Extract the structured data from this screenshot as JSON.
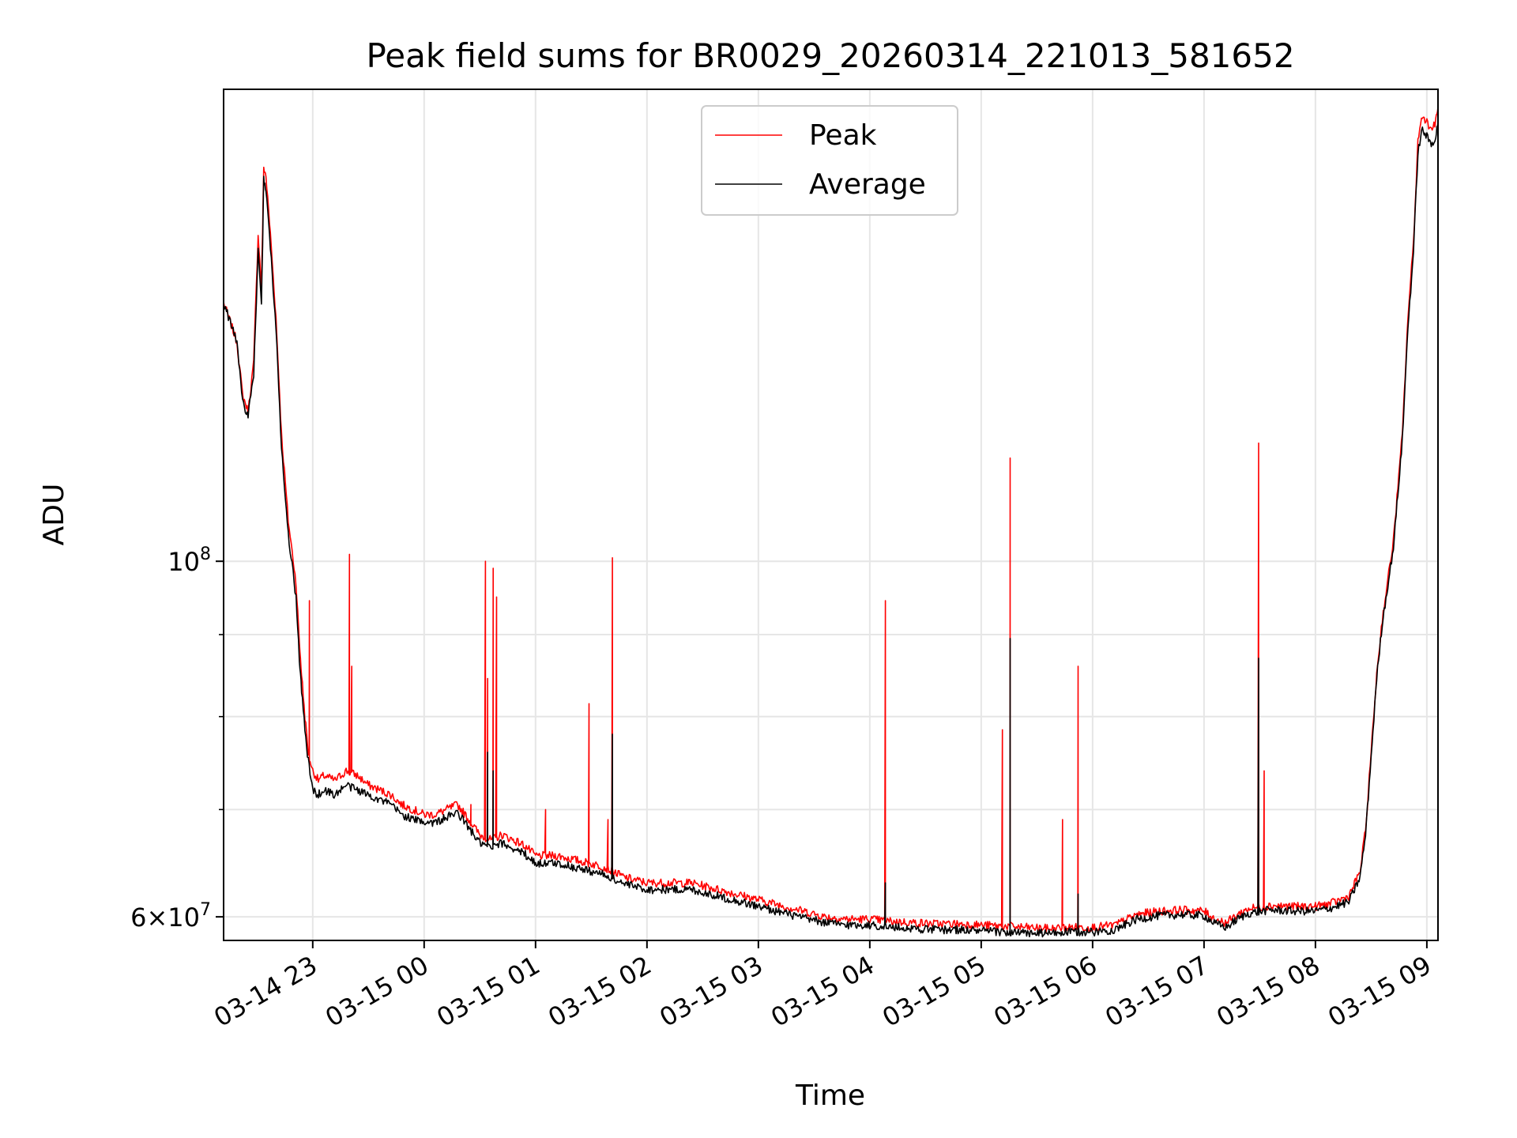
{
  "chart_data": {
    "type": "line",
    "title": "Peak field sums for BR0029_20260314_221013_581652",
    "xlabel": "Time",
    "ylabel": "ADU",
    "yscale": "log",
    "ylim": [
      58000000,
      197000000
    ],
    "xlim_hours": [
      -0.8,
      10.1
    ],
    "grid": true,
    "legend": {
      "placement": "upper-center",
      "entries": [
        "Peak",
        "Average"
      ]
    },
    "x_ticks": [
      {
        "hour": 0,
        "label": "03-14 23"
      },
      {
        "hour": 1,
        "label": "03-15 00"
      },
      {
        "hour": 2,
        "label": "03-15 01"
      },
      {
        "hour": 3,
        "label": "03-15 02"
      },
      {
        "hour": 4,
        "label": "03-15 03"
      },
      {
        "hour": 5,
        "label": "03-15 04"
      },
      {
        "hour": 6,
        "label": "03-15 05"
      },
      {
        "hour": 7,
        "label": "03-15 06"
      },
      {
        "hour": 8,
        "label": "03-15 07"
      },
      {
        "hour": 9,
        "label": "03-15 08"
      },
      {
        "hour": 10,
        "label": "03-15 09"
      }
    ],
    "y_major_ticks": [
      {
        "value": 60000000,
        "base": "6×10",
        "exp": "7"
      },
      {
        "value": 100000000,
        "base": "10",
        "exp": "8"
      }
    ],
    "y_minor_ticks": [
      70000000,
      80000000,
      90000000
    ],
    "series": [
      {
        "name": "Peak",
        "color": "#ff0000",
        "points": [
          [
            -0.8,
            145000000
          ],
          [
            -0.74,
            141000000
          ],
          [
            -0.68,
            137000000
          ],
          [
            -0.63,
            127000000
          ],
          [
            -0.58,
            124000000
          ],
          [
            -0.53,
            133000000
          ],
          [
            -0.49,
            160000000
          ],
          [
            -0.46,
            148000000
          ],
          [
            -0.44,
            176000000
          ],
          [
            -0.42,
            174000000
          ],
          [
            -0.38,
            160000000
          ],
          [
            -0.33,
            142000000
          ],
          [
            -0.28,
            120000000
          ],
          [
            -0.22,
            106000000
          ],
          [
            -0.15,
            97000000
          ],
          [
            -0.12,
            89000000
          ],
          [
            -0.1,
            85000000
          ],
          [
            -0.07,
            80000000
          ],
          [
            -0.04,
            76000000
          ],
          [
            0.0,
            74000000
          ],
          [
            0.05,
            73000000
          ],
          [
            0.1,
            73500000
          ],
          [
            0.2,
            73000000
          ],
          [
            0.3,
            74000000
          ],
          [
            0.4,
            73500000
          ],
          [
            0.5,
            72500000
          ],
          [
            0.6,
            72000000
          ],
          [
            0.7,
            71500000
          ],
          [
            0.8,
            70500000
          ],
          [
            0.9,
            70000000
          ],
          [
            1.0,
            69500000
          ],
          [
            1.1,
            69500000
          ],
          [
            1.2,
            70000000
          ],
          [
            1.3,
            70500000
          ],
          [
            1.4,
            69000000
          ],
          [
            1.5,
            67500000
          ],
          [
            1.6,
            67000000
          ],
          [
            1.7,
            67500000
          ],
          [
            1.8,
            67000000
          ],
          [
            1.9,
            66500000
          ],
          [
            2.0,
            65500000
          ],
          [
            2.2,
            65500000
          ],
          [
            2.4,
            65000000
          ],
          [
            2.6,
            64500000
          ],
          [
            2.8,
            63500000
          ],
          [
            3.0,
            63000000
          ],
          [
            3.2,
            63000000
          ],
          [
            3.4,
            63000000
          ],
          [
            3.6,
            62500000
          ],
          [
            3.8,
            62000000
          ],
          [
            4.0,
            61500000
          ],
          [
            4.2,
            61000000
          ],
          [
            4.4,
            60500000
          ],
          [
            4.6,
            60000000
          ],
          [
            4.8,
            59800000
          ],
          [
            5.0,
            59800000
          ],
          [
            5.2,
            59600000
          ],
          [
            5.4,
            59500000
          ],
          [
            5.6,
            59400000
          ],
          [
            5.8,
            59400000
          ],
          [
            6.0,
            59300000
          ],
          [
            6.2,
            59200000
          ],
          [
            6.4,
            59100000
          ],
          [
            6.6,
            59000000
          ],
          [
            6.8,
            59100000
          ],
          [
            7.0,
            59100000
          ],
          [
            7.2,
            59300000
          ],
          [
            7.4,
            60200000
          ],
          [
            7.6,
            60500000
          ],
          [
            7.8,
            60600000
          ],
          [
            8.0,
            60500000
          ],
          [
            8.1,
            59800000
          ],
          [
            8.2,
            59500000
          ],
          [
            8.3,
            60200000
          ],
          [
            8.4,
            60700000
          ],
          [
            8.6,
            61000000
          ],
          [
            8.8,
            60900000
          ],
          [
            9.0,
            60900000
          ],
          [
            9.15,
            61200000
          ],
          [
            9.3,
            61800000
          ],
          [
            9.4,
            64000000
          ],
          [
            9.45,
            68000000
          ],
          [
            9.5,
            76000000
          ],
          [
            9.55,
            85000000
          ],
          [
            9.6,
            92000000
          ],
          [
            9.7,
            103000000
          ],
          [
            9.78,
            120000000
          ],
          [
            9.83,
            142000000
          ],
          [
            9.88,
            158000000
          ],
          [
            9.92,
            183000000
          ],
          [
            9.96,
            190000000
          ],
          [
            10.0,
            188000000
          ],
          [
            10.04,
            186000000
          ],
          [
            10.08,
            188000000
          ],
          [
            10.1,
            192000000
          ]
        ],
        "spikes": [
          [
            -0.03,
            94500000
          ],
          [
            0.33,
            101000000
          ],
          [
            0.35,
            86000000
          ],
          [
            1.55,
            100000000
          ],
          [
            1.57,
            84500000
          ],
          [
            1.62,
            99000000
          ],
          [
            1.65,
            95000000
          ],
          [
            1.42,
            70500000
          ],
          [
            2.09,
            70000000
          ],
          [
            2.48,
            81500000
          ],
          [
            2.69,
            100500000
          ],
          [
            2.65,
            69000000
          ],
          [
            5.14,
            94500000
          ],
          [
            6.19,
            78500000
          ],
          [
            6.26,
            116000000
          ],
          [
            6.73,
            69000000
          ],
          [
            6.87,
            86000000
          ],
          [
            8.49,
            118500000
          ],
          [
            8.54,
            74000000
          ]
        ]
      },
      {
        "name": "Average",
        "color": "#000000",
        "points": [
          [
            -0.8,
            145000000
          ],
          [
            -0.74,
            141000000
          ],
          [
            -0.68,
            137000000
          ],
          [
            -0.63,
            126000000
          ],
          [
            -0.58,
            123000000
          ],
          [
            -0.53,
            131000000
          ],
          [
            -0.49,
            156000000
          ],
          [
            -0.46,
            144000000
          ],
          [
            -0.44,
            173000000
          ],
          [
            -0.42,
            171000000
          ],
          [
            -0.38,
            157000000
          ],
          [
            -0.33,
            140000000
          ],
          [
            -0.28,
            118000000
          ],
          [
            -0.22,
            104000000
          ],
          [
            -0.15,
            95000000
          ],
          [
            -0.12,
            87000000
          ],
          [
            -0.1,
            83000000
          ],
          [
            -0.07,
            78500000
          ],
          [
            -0.04,
            75000000
          ],
          [
            0.0,
            72000000
          ],
          [
            0.05,
            71500000
          ],
          [
            0.1,
            72000000
          ],
          [
            0.2,
            71500000
          ],
          [
            0.3,
            72500000
          ],
          [
            0.4,
            72000000
          ],
          [
            0.5,
            71500000
          ],
          [
            0.6,
            71000000
          ],
          [
            0.7,
            70500000
          ],
          [
            0.8,
            69500000
          ],
          [
            0.9,
            69000000
          ],
          [
            1.0,
            68800000
          ],
          [
            1.1,
            68700000
          ],
          [
            1.2,
            69200000
          ],
          [
            1.3,
            69700000
          ],
          [
            1.4,
            68200000
          ],
          [
            1.5,
            66700000
          ],
          [
            1.6,
            66200000
          ],
          [
            1.7,
            66700000
          ],
          [
            1.8,
            66200000
          ],
          [
            1.9,
            65700000
          ],
          [
            2.0,
            64800000
          ],
          [
            2.2,
            64800000
          ],
          [
            2.4,
            64300000
          ],
          [
            2.6,
            63800000
          ],
          [
            2.8,
            62900000
          ],
          [
            3.0,
            62400000
          ],
          [
            3.2,
            62400000
          ],
          [
            3.4,
            62400000
          ],
          [
            3.6,
            61900000
          ],
          [
            3.8,
            61400000
          ],
          [
            4.0,
            60900000
          ],
          [
            4.2,
            60400000
          ],
          [
            4.4,
            59900000
          ],
          [
            4.6,
            59500000
          ],
          [
            4.8,
            59300000
          ],
          [
            5.0,
            59300000
          ],
          [
            5.2,
            59100000
          ],
          [
            5.4,
            59000000
          ],
          [
            5.6,
            58900000
          ],
          [
            5.8,
            58900000
          ],
          [
            6.0,
            58800000
          ],
          [
            6.2,
            58700000
          ],
          [
            6.4,
            58600000
          ],
          [
            6.6,
            58600000
          ],
          [
            6.8,
            58700000
          ],
          [
            7.0,
            58700000
          ],
          [
            7.2,
            58900000
          ],
          [
            7.4,
            59800000
          ],
          [
            7.6,
            60100000
          ],
          [
            7.8,
            60200000
          ],
          [
            8.0,
            60100000
          ],
          [
            8.1,
            59400000
          ],
          [
            8.2,
            59100000
          ],
          [
            8.3,
            59800000
          ],
          [
            8.4,
            60300000
          ],
          [
            8.6,
            60600000
          ],
          [
            8.8,
            60500000
          ],
          [
            9.0,
            60500000
          ],
          [
            9.15,
            60800000
          ],
          [
            9.3,
            61300000
          ],
          [
            9.4,
            63500000
          ],
          [
            9.45,
            67500000
          ],
          [
            9.5,
            75500000
          ],
          [
            9.55,
            84500000
          ],
          [
            9.6,
            91500000
          ],
          [
            9.7,
            102000000
          ],
          [
            9.78,
            119000000
          ],
          [
            9.83,
            140000000
          ],
          [
            9.88,
            156000000
          ],
          [
            9.92,
            180000000
          ],
          [
            9.96,
            186000000
          ],
          [
            10.0,
            184000000
          ],
          [
            10.04,
            182000000
          ],
          [
            10.08,
            184000000
          ],
          [
            10.1,
            188000000
          ]
        ],
        "spikes": [
          [
            1.57,
            76000000
          ],
          [
            1.62,
            74000000
          ],
          [
            2.69,
            78000000
          ],
          [
            5.14,
            63000000
          ],
          [
            6.26,
            89500000
          ],
          [
            6.87,
            62000000
          ],
          [
            8.49,
            87000000
          ]
        ]
      }
    ]
  }
}
